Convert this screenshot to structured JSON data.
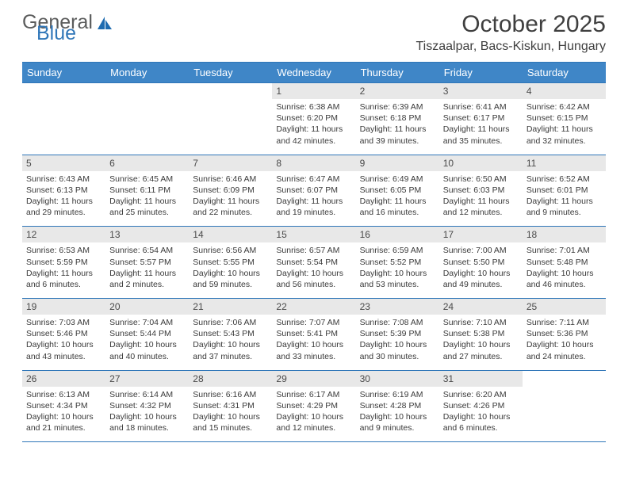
{
  "brand": {
    "word1": "General",
    "word2": "Blue",
    "logo_color": "#1f6cb0"
  },
  "title": "October 2025",
  "location": "Tiszaalpar, Bacs-Kiskun, Hungary",
  "colors": {
    "header_bg": "#3f86c7",
    "header_text": "#ffffff",
    "daynum_bg": "#e8e8e8",
    "rule": "#2f76b8",
    "text": "#3a3a3a",
    "page_bg": "#ffffff"
  },
  "fonts": {
    "title_pt": 30,
    "location_pt": 16,
    "hdr_pt": 13,
    "daynum_pt": 12,
    "body_pt": 10.5
  },
  "dow": [
    "Sunday",
    "Monday",
    "Tuesday",
    "Wednesday",
    "Thursday",
    "Friday",
    "Saturday"
  ],
  "weeks": [
    [
      null,
      null,
      null,
      {
        "n": "1",
        "sr": "Sunrise: 6:38 AM",
        "ss": "Sunset: 6:20 PM",
        "d1": "Daylight: 11 hours",
        "d2": "and 42 minutes."
      },
      {
        "n": "2",
        "sr": "Sunrise: 6:39 AM",
        "ss": "Sunset: 6:18 PM",
        "d1": "Daylight: 11 hours",
        "d2": "and 39 minutes."
      },
      {
        "n": "3",
        "sr": "Sunrise: 6:41 AM",
        "ss": "Sunset: 6:17 PM",
        "d1": "Daylight: 11 hours",
        "d2": "and 35 minutes."
      },
      {
        "n": "4",
        "sr": "Sunrise: 6:42 AM",
        "ss": "Sunset: 6:15 PM",
        "d1": "Daylight: 11 hours",
        "d2": "and 32 minutes."
      }
    ],
    [
      {
        "n": "5",
        "sr": "Sunrise: 6:43 AM",
        "ss": "Sunset: 6:13 PM",
        "d1": "Daylight: 11 hours",
        "d2": "and 29 minutes."
      },
      {
        "n": "6",
        "sr": "Sunrise: 6:45 AM",
        "ss": "Sunset: 6:11 PM",
        "d1": "Daylight: 11 hours",
        "d2": "and 25 minutes."
      },
      {
        "n": "7",
        "sr": "Sunrise: 6:46 AM",
        "ss": "Sunset: 6:09 PM",
        "d1": "Daylight: 11 hours",
        "d2": "and 22 minutes."
      },
      {
        "n": "8",
        "sr": "Sunrise: 6:47 AM",
        "ss": "Sunset: 6:07 PM",
        "d1": "Daylight: 11 hours",
        "d2": "and 19 minutes."
      },
      {
        "n": "9",
        "sr": "Sunrise: 6:49 AM",
        "ss": "Sunset: 6:05 PM",
        "d1": "Daylight: 11 hours",
        "d2": "and 16 minutes."
      },
      {
        "n": "10",
        "sr": "Sunrise: 6:50 AM",
        "ss": "Sunset: 6:03 PM",
        "d1": "Daylight: 11 hours",
        "d2": "and 12 minutes."
      },
      {
        "n": "11",
        "sr": "Sunrise: 6:52 AM",
        "ss": "Sunset: 6:01 PM",
        "d1": "Daylight: 11 hours",
        "d2": "and 9 minutes."
      }
    ],
    [
      {
        "n": "12",
        "sr": "Sunrise: 6:53 AM",
        "ss": "Sunset: 5:59 PM",
        "d1": "Daylight: 11 hours",
        "d2": "and 6 minutes."
      },
      {
        "n": "13",
        "sr": "Sunrise: 6:54 AM",
        "ss": "Sunset: 5:57 PM",
        "d1": "Daylight: 11 hours",
        "d2": "and 2 minutes."
      },
      {
        "n": "14",
        "sr": "Sunrise: 6:56 AM",
        "ss": "Sunset: 5:55 PM",
        "d1": "Daylight: 10 hours",
        "d2": "and 59 minutes."
      },
      {
        "n": "15",
        "sr": "Sunrise: 6:57 AM",
        "ss": "Sunset: 5:54 PM",
        "d1": "Daylight: 10 hours",
        "d2": "and 56 minutes."
      },
      {
        "n": "16",
        "sr": "Sunrise: 6:59 AM",
        "ss": "Sunset: 5:52 PM",
        "d1": "Daylight: 10 hours",
        "d2": "and 53 minutes."
      },
      {
        "n": "17",
        "sr": "Sunrise: 7:00 AM",
        "ss": "Sunset: 5:50 PM",
        "d1": "Daylight: 10 hours",
        "d2": "and 49 minutes."
      },
      {
        "n": "18",
        "sr": "Sunrise: 7:01 AM",
        "ss": "Sunset: 5:48 PM",
        "d1": "Daylight: 10 hours",
        "d2": "and 46 minutes."
      }
    ],
    [
      {
        "n": "19",
        "sr": "Sunrise: 7:03 AM",
        "ss": "Sunset: 5:46 PM",
        "d1": "Daylight: 10 hours",
        "d2": "and 43 minutes."
      },
      {
        "n": "20",
        "sr": "Sunrise: 7:04 AM",
        "ss": "Sunset: 5:44 PM",
        "d1": "Daylight: 10 hours",
        "d2": "and 40 minutes."
      },
      {
        "n": "21",
        "sr": "Sunrise: 7:06 AM",
        "ss": "Sunset: 5:43 PM",
        "d1": "Daylight: 10 hours",
        "d2": "and 37 minutes."
      },
      {
        "n": "22",
        "sr": "Sunrise: 7:07 AM",
        "ss": "Sunset: 5:41 PM",
        "d1": "Daylight: 10 hours",
        "d2": "and 33 minutes."
      },
      {
        "n": "23",
        "sr": "Sunrise: 7:08 AM",
        "ss": "Sunset: 5:39 PM",
        "d1": "Daylight: 10 hours",
        "d2": "and 30 minutes."
      },
      {
        "n": "24",
        "sr": "Sunrise: 7:10 AM",
        "ss": "Sunset: 5:38 PM",
        "d1": "Daylight: 10 hours",
        "d2": "and 27 minutes."
      },
      {
        "n": "25",
        "sr": "Sunrise: 7:11 AM",
        "ss": "Sunset: 5:36 PM",
        "d1": "Daylight: 10 hours",
        "d2": "and 24 minutes."
      }
    ],
    [
      {
        "n": "26",
        "sr": "Sunrise: 6:13 AM",
        "ss": "Sunset: 4:34 PM",
        "d1": "Daylight: 10 hours",
        "d2": "and 21 minutes."
      },
      {
        "n": "27",
        "sr": "Sunrise: 6:14 AM",
        "ss": "Sunset: 4:32 PM",
        "d1": "Daylight: 10 hours",
        "d2": "and 18 minutes."
      },
      {
        "n": "28",
        "sr": "Sunrise: 6:16 AM",
        "ss": "Sunset: 4:31 PM",
        "d1": "Daylight: 10 hours",
        "d2": "and 15 minutes."
      },
      {
        "n": "29",
        "sr": "Sunrise: 6:17 AM",
        "ss": "Sunset: 4:29 PM",
        "d1": "Daylight: 10 hours",
        "d2": "and 12 minutes."
      },
      {
        "n": "30",
        "sr": "Sunrise: 6:19 AM",
        "ss": "Sunset: 4:28 PM",
        "d1": "Daylight: 10 hours",
        "d2": "and 9 minutes."
      },
      {
        "n": "31",
        "sr": "Sunrise: 6:20 AM",
        "ss": "Sunset: 4:26 PM",
        "d1": "Daylight: 10 hours",
        "d2": "and 6 minutes."
      },
      null
    ]
  ]
}
